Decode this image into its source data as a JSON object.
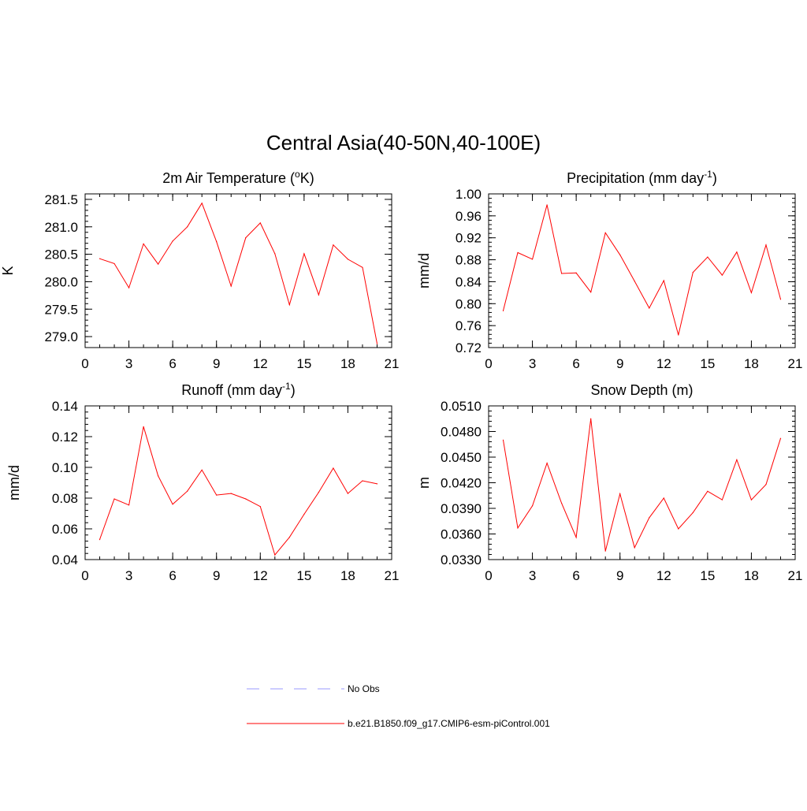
{
  "page_title": "Central Asia(40-50N,40-100E)",
  "colors": {
    "model_line": "#ff0000",
    "obs_line": "#9999ff",
    "axis": "#000000"
  },
  "legend": [
    {
      "label": "No Obs",
      "style": "dashed",
      "color": "#9999ff"
    },
    {
      "label": "b.e21.B1850.f09_g17.CMIP6-esm-piControl.001",
      "style": "solid",
      "color": "#ff0000"
    }
  ],
  "chart_data": [
    {
      "type": "line",
      "title": "2m Air Temperature (",
      "title_sup": "o",
      "title_after": "K)",
      "ylabel": "K",
      "xlim": [
        0,
        21
      ],
      "ylim": [
        278.8,
        281.6
      ],
      "xticks": [
        0,
        3,
        6,
        9,
        12,
        15,
        18,
        21
      ],
      "xtick_labels": [
        "0",
        "3",
        "6",
        "9",
        "12",
        "15",
        "18",
        "21"
      ],
      "yticks": [
        279.0,
        279.5,
        280.0,
        280.5,
        281.0,
        281.5
      ],
      "ytick_labels": [
        "279.0",
        "279.5",
        "280.0",
        "280.5",
        "281.0",
        "281.5"
      ],
      "x": [
        1,
        2,
        3,
        4,
        5,
        6,
        7,
        8,
        9,
        10,
        11,
        12,
        13,
        14,
        15,
        16,
        17,
        18,
        19,
        20
      ],
      "series": [
        {
          "name": "b.e21.B1850.f09_g17.CMIP6-esm-piControl.001",
          "values": [
            280.42,
            280.33,
            279.89,
            280.69,
            280.32,
            280.74,
            281.0,
            281.43,
            280.73,
            279.92,
            280.8,
            281.07,
            280.51,
            279.58,
            280.51,
            279.76,
            280.67,
            280.41,
            280.26,
            278.87
          ]
        }
      ]
    },
    {
      "type": "line",
      "title": "Precipitation (mm day",
      "title_sup": "-1",
      "title_after": ")",
      "ylabel": "mm/d",
      "xlim": [
        0,
        21
      ],
      "ylim": [
        0.72,
        1.0
      ],
      "xticks": [
        0,
        3,
        6,
        9,
        12,
        15,
        18,
        21
      ],
      "xtick_labels": [
        "0",
        "3",
        "6",
        "9",
        "12",
        "15",
        "18",
        "21"
      ],
      "yticks": [
        0.72,
        0.76,
        0.8,
        0.84,
        0.88,
        0.92,
        0.96,
        1.0
      ],
      "ytick_labels": [
        "0.72",
        "0.76",
        "0.80",
        "0.84",
        "0.88",
        "0.92",
        "0.96",
        "1.00"
      ],
      "x": [
        1,
        2,
        3,
        4,
        5,
        6,
        7,
        8,
        9,
        10,
        11,
        12,
        13,
        14,
        15,
        16,
        17,
        18,
        19,
        20
      ],
      "series": [
        {
          "name": "b.e21.B1850.f09_g17.CMIP6-esm-piControl.001",
          "values": [
            0.787,
            0.893,
            0.881,
            0.98,
            0.855,
            0.856,
            0.821,
            0.929,
            0.889,
            0.841,
            0.792,
            0.842,
            0.743,
            0.857,
            0.885,
            0.852,
            0.894,
            0.82,
            0.907,
            0.808
          ]
        }
      ]
    },
    {
      "type": "line",
      "title": "Runoff (mm day",
      "title_sup": "-1",
      "title_after": ")",
      "ylabel": "mm/d",
      "xlim": [
        0,
        21
      ],
      "ylim": [
        0.04,
        0.14
      ],
      "xticks": [
        0,
        3,
        6,
        9,
        12,
        15,
        18,
        21
      ],
      "xtick_labels": [
        "0",
        "3",
        "6",
        "9",
        "12",
        "15",
        "18",
        "21"
      ],
      "yticks": [
        0.04,
        0.06,
        0.08,
        0.1,
        0.12,
        0.14
      ],
      "ytick_labels": [
        "0.04",
        "0.06",
        "0.08",
        "0.10",
        "0.12",
        "0.14"
      ],
      "x": [
        1,
        2,
        3,
        4,
        5,
        6,
        7,
        8,
        9,
        10,
        11,
        12,
        13,
        14,
        15,
        16,
        17,
        18,
        19,
        20
      ],
      "series": [
        {
          "name": "b.e21.B1850.f09_g17.CMIP6-esm-piControl.001",
          "values": [
            0.053,
            0.0795,
            0.0755,
            0.1265,
            0.0945,
            0.076,
            0.0845,
            0.0983,
            0.082,
            0.083,
            0.0795,
            0.0745,
            0.043,
            0.0545,
            0.0695,
            0.0838,
            0.0995,
            0.083,
            0.0913,
            0.0893
          ]
        }
      ]
    },
    {
      "type": "line",
      "title": "Snow Depth (m)",
      "title_sup": "",
      "title_after": "",
      "ylabel": "m",
      "xlim": [
        0,
        21
      ],
      "ylim": [
        0.033,
        0.051
      ],
      "xticks": [
        0,
        3,
        6,
        9,
        12,
        15,
        18,
        21
      ],
      "xtick_labels": [
        "0",
        "3",
        "6",
        "9",
        "12",
        "15",
        "18",
        "21"
      ],
      "yticks": [
        0.033,
        0.036,
        0.039,
        0.042,
        0.045,
        0.048,
        0.051
      ],
      "ytick_labels": [
        "0.0330",
        "0.0360",
        "0.0390",
        "0.0420",
        "0.0450",
        "0.0480",
        "0.0510"
      ],
      "x": [
        1,
        2,
        3,
        4,
        5,
        6,
        7,
        8,
        9,
        10,
        11,
        12,
        13,
        14,
        15,
        16,
        17,
        18,
        19,
        20
      ],
      "series": [
        {
          "name": "b.e21.B1850.f09_g17.CMIP6-esm-piControl.001",
          "values": [
            0.047,
            0.0367,
            0.0393,
            0.0443,
            0.0396,
            0.0356,
            0.0495,
            0.034,
            0.0407,
            0.0344,
            0.0379,
            0.0402,
            0.0366,
            0.0385,
            0.041,
            0.04,
            0.0447,
            0.04,
            0.0418,
            0.0472
          ]
        }
      ]
    }
  ]
}
